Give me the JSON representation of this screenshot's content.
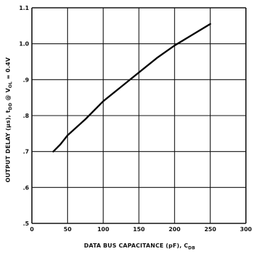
{
  "chart_data": {
    "type": "line",
    "title": "",
    "xlabel": "DATA BUS CAPACITANCE (pF), C",
    "xlabel_sub": "DB",
    "ylabel_parts": {
      "main": "OUTPUT DELAY (μs), t",
      "sub1": "DD",
      "mid": " @ V",
      "sub2": "OL",
      "tail": " = 0.4V"
    },
    "xlim": [
      0,
      300
    ],
    "ylim": [
      0.5,
      1.1
    ],
    "x_ticks": [
      0,
      50,
      100,
      150,
      200,
      250,
      300
    ],
    "x_tick_labels": [
      "0",
      "50",
      "100",
      "150",
      "200",
      "250",
      "300"
    ],
    "y_ticks": [
      0.5,
      0.6,
      0.7,
      0.8,
      0.9,
      1.0,
      1.1
    ],
    "y_tick_labels": [
      ".5",
      ".6",
      ".7",
      ".8",
      ".9",
      "1.0",
      "1.1"
    ],
    "grid": true,
    "series": [
      {
        "x": [
          30,
          40,
          50,
          75,
          100,
          125,
          150,
          175,
          200,
          225,
          250
        ],
        "y": [
          0.7,
          0.72,
          0.745,
          0.79,
          0.84,
          0.88,
          0.92,
          0.96,
          0.995,
          1.025,
          1.055
        ]
      }
    ]
  }
}
